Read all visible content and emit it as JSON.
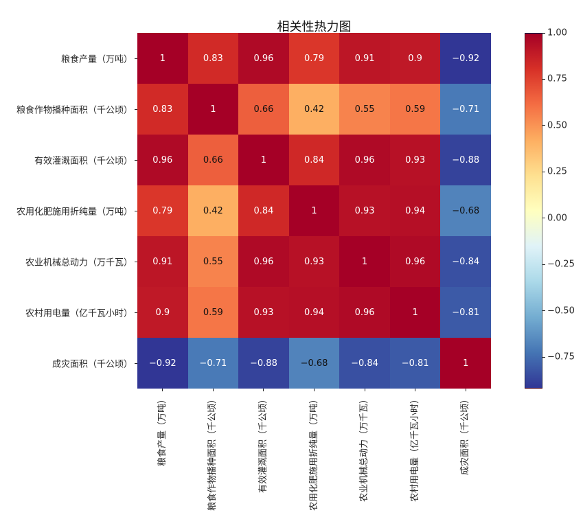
{
  "title": "相关性热力图",
  "chart_data": {
    "type": "heatmap",
    "title": "相关性热力图",
    "labels": [
      "粮食产量（万吨）",
      "粮食作物播种面积（千公顷）",
      "有效灌溉面积（千公顷）",
      "农用化肥施用折纯量（万吨）",
      "农业机械总动力（万千瓦）",
      "农村用电量（亿千瓦小时）",
      "成灾面积（千公顷）"
    ],
    "matrix": [
      [
        1,
        0.83,
        0.96,
        0.79,
        0.91,
        0.9,
        -0.92
      ],
      [
        0.83,
        1,
        0.66,
        0.42,
        0.55,
        0.59,
        -0.71
      ],
      [
        0.96,
        0.66,
        1,
        0.84,
        0.96,
        0.93,
        -0.88
      ],
      [
        0.79,
        0.42,
        0.84,
        1,
        0.93,
        0.94,
        -0.68
      ],
      [
        0.91,
        0.55,
        0.96,
        0.93,
        1,
        0.96,
        -0.84
      ],
      [
        0.9,
        0.59,
        0.93,
        0.94,
        0.96,
        1,
        -0.81
      ],
      [
        -0.92,
        -0.71,
        -0.88,
        -0.68,
        -0.84,
        -0.81,
        1
      ]
    ],
    "vmin": -0.92,
    "vmax": 1.0,
    "colormap": "RdYlBu_r",
    "colormap_anchors": [
      "#313695",
      "#4575b4",
      "#74add1",
      "#abd9e9",
      "#e0f3f8",
      "#ffffbf",
      "#fee090",
      "#fdae61",
      "#f46d43",
      "#d73027",
      "#a50026"
    ],
    "colorbar_ticks": [
      {
        "label": "1.00",
        "value": 1.0
      },
      {
        "label": "0.75",
        "value": 0.75
      },
      {
        "label": "0.50",
        "value": 0.5
      },
      {
        "label": "0.25",
        "value": 0.25
      },
      {
        "label": "0.00",
        "value": 0.0
      },
      {
        "label": "−0.25",
        "value": -0.25
      },
      {
        "label": "−0.50",
        "value": -0.5
      },
      {
        "label": "−0.75",
        "value": -0.75
      }
    ],
    "legend_position": "right",
    "grid": false,
    "background": "#ffffff"
  }
}
